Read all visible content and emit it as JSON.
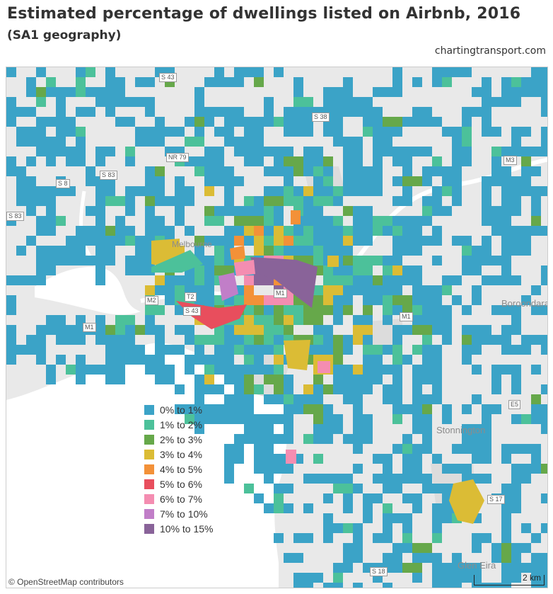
{
  "title": "Estimated percentage of dwellings listed on Airbnb, 2016",
  "subtitle": "(SA1 geography)",
  "source": "chartingtransport.com",
  "attribution": "© OpenStreetMap contributors",
  "scale": "2 km",
  "colors": {
    "c0": "#3ba3c7",
    "c1": "#4cc19a",
    "c2": "#66a84a",
    "c3": "#dbbc35",
    "c4": "#f39138",
    "c5": "#e84e5d",
    "c6": "#f48db1",
    "c7": "#c17ec8",
    "c10": "#896399",
    "water": "#ffffff",
    "land": "#e9e9e9",
    "park": "#dcdcdc"
  },
  "legend": [
    {
      "label": "0% to 1%",
      "color": "#3ba3c7"
    },
    {
      "label": "1% to 2%",
      "color": "#4cc19a"
    },
    {
      "label": "2% to 3%",
      "color": "#66a84a"
    },
    {
      "label": "3% to 4%",
      "color": "#dbbc35"
    },
    {
      "label": "4% to 5%",
      "color": "#f39138"
    },
    {
      "label": "5% to 6%",
      "color": "#e84e5d"
    },
    {
      "label": "6% to 7%",
      "color": "#f48db1"
    },
    {
      "label": "7% to 10%",
      "color": "#c17ec8"
    },
    {
      "label": "10% to 15%",
      "color": "#896399"
    }
  ],
  "place_labels": {
    "melbourne": "Melbourne",
    "stonnington": "Stonnington",
    "glen_eira": "Glen Eira",
    "boroondara": "Boroondara"
  },
  "roads": {
    "s43": "S 43",
    "s38": "S 38",
    "nr79": "NR 79",
    "s83a": "S 83",
    "s8": "S 8",
    "s83b": "S 83",
    "m3": "M3",
    "m2": "M2",
    "m1a": "M1",
    "m1b": "M1",
    "m1c": "M1",
    "t2": "T2",
    "s43b": "S 43",
    "e5": "E5",
    "s18": "S 18",
    "s17": "S 17"
  }
}
